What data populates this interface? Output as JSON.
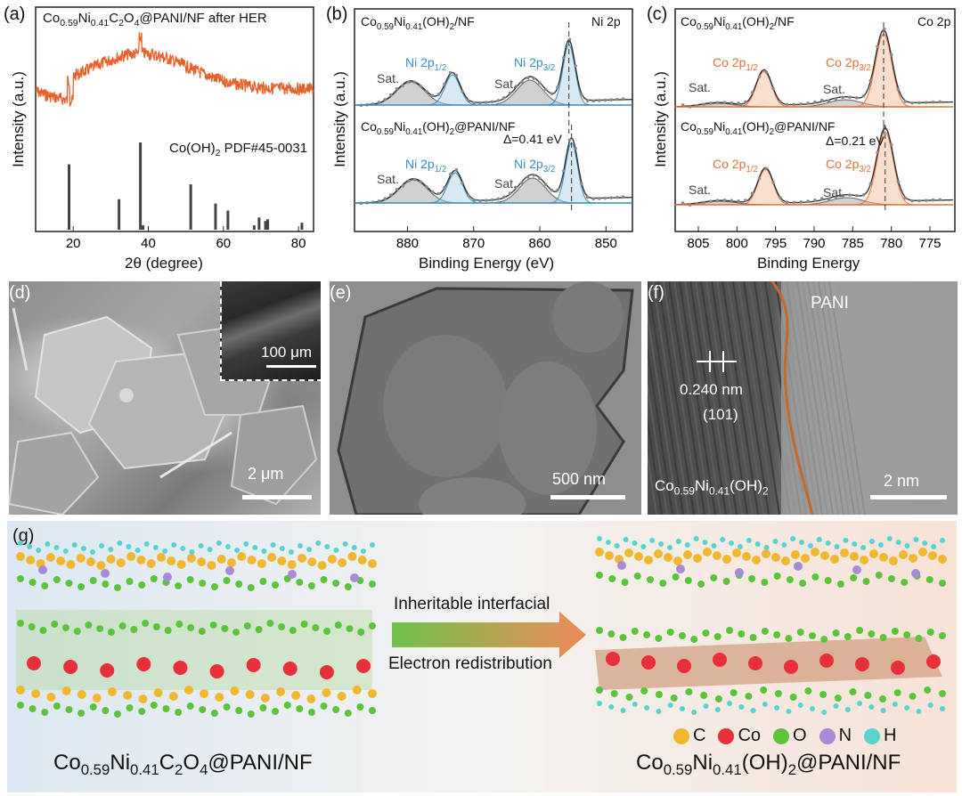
{
  "panels": {
    "a": {
      "label": "(a)",
      "title_main": "Co",
      "title_html": "Co0.59Ni0.41C2O4@PANI/NF after HER",
      "ref": "Co(OH)2 PDF#45-0031",
      "ylabel": "Intensity (a.u.)",
      "xlabel": "2θ (degree)"
    },
    "b": {
      "label": "(b)",
      "top": "Co0.59Ni0.41(OH)2/NF",
      "bottom": "Co0.59Ni0.41(OH)2@PANI/NF",
      "region": "Ni 2p",
      "peak1": "Ni 2p1/2",
      "peak2": "Ni 2p3/2",
      "sat": "Sat.",
      "delta": "Δ=0.41 eV",
      "ylabel": "Intensity (a.u.)",
      "xlabel": "Binding Energy (eV)"
    },
    "c": {
      "label": "(c)",
      "top": "Co0.59Ni0.41(OH)2/NF",
      "bottom": "Co0.59Ni0.41(OH)2@PANI/NF",
      "region": "Co 2p",
      "peak1": "Co 2p1/2",
      "peak2": "Co 2p3/2",
      "sat": "Sat.",
      "delta": "Δ=0.21 eV",
      "ylabel": "Intensity (a.u.)",
      "xlabel": "Binding Energy"
    },
    "d": {
      "label": "(d)",
      "inset_scale": "100 μm",
      "scale": "2 μm"
    },
    "e": {
      "label": "(e)",
      "scale": "500 nm"
    },
    "f": {
      "label": "(f)",
      "pani": "PANI",
      "spacing": "0.240 nm",
      "plane": "(101)",
      "phase": "Co0.59Ni0.41(OH)2",
      "scale": "2 nm"
    },
    "g": {
      "label": "(g)",
      "arrow_top": "Inheritable interfacial",
      "arrow_bottom": "Electron redistribution",
      "left": "Co0.59Ni0.41C2O4@PANI/NF",
      "right": "Co0.59Ni0.41(OH)2@PANI/NF"
    }
  },
  "legend": [
    {
      "symbol": "C",
      "color": "#f2b731"
    },
    {
      "symbol": "Co",
      "color": "#e8303a"
    },
    {
      "symbol": "O",
      "color": "#5cc43a"
    },
    {
      "symbol": "N",
      "color": "#a98ad9"
    },
    {
      "symbol": "H",
      "color": "#56d4d0"
    }
  ],
  "chart_data": [
    {
      "type": "line",
      "panel": "a",
      "xlabel": "2θ (degree)",
      "ylabel": "Intensity (a.u.)",
      "xlim": [
        10,
        84
      ],
      "xticks": [
        20,
        40,
        60,
        80
      ],
      "reference_peaks": {
        "name": "Co(OH)2 PDF#45-0031",
        "x": [
          18.9,
          32.2,
          37.9,
          38.6,
          51.3,
          57.9,
          61.2,
          68.2,
          69.5,
          71.2,
          71.8,
          80.9
        ],
        "y": [
          0.75,
          0.35,
          1.0,
          0.05,
          0.52,
          0.3,
          0.22,
          0.05,
          0.14,
          0.1,
          0.12,
          0.08
        ]
      },
      "series": [
        {
          "name": "",
          "color": "#e8602c"
        }
      ]
    },
    {
      "type": "line",
      "panel": "b",
      "xlabel": "Binding Energy (eV)",
      "ylabel": "Intensity (a.u.)",
      "xlim": [
        888,
        846
      ],
      "xticks": [
        880,
        870,
        860,
        850
      ],
      "peak_guides": {
        "top": 855.6,
        "bottom": 855.2
      }
    },
    {
      "type": "line",
      "panel": "c",
      "xlabel": "Binding Energy",
      "ylabel": "Intensity (a.u.)",
      "xlim": [
        808,
        772
      ],
      "xticks": [
        805,
        800,
        795,
        790,
        785,
        780,
        775
      ],
      "peak_guides": {
        "top": 781.0,
        "bottom": 780.8
      }
    }
  ]
}
